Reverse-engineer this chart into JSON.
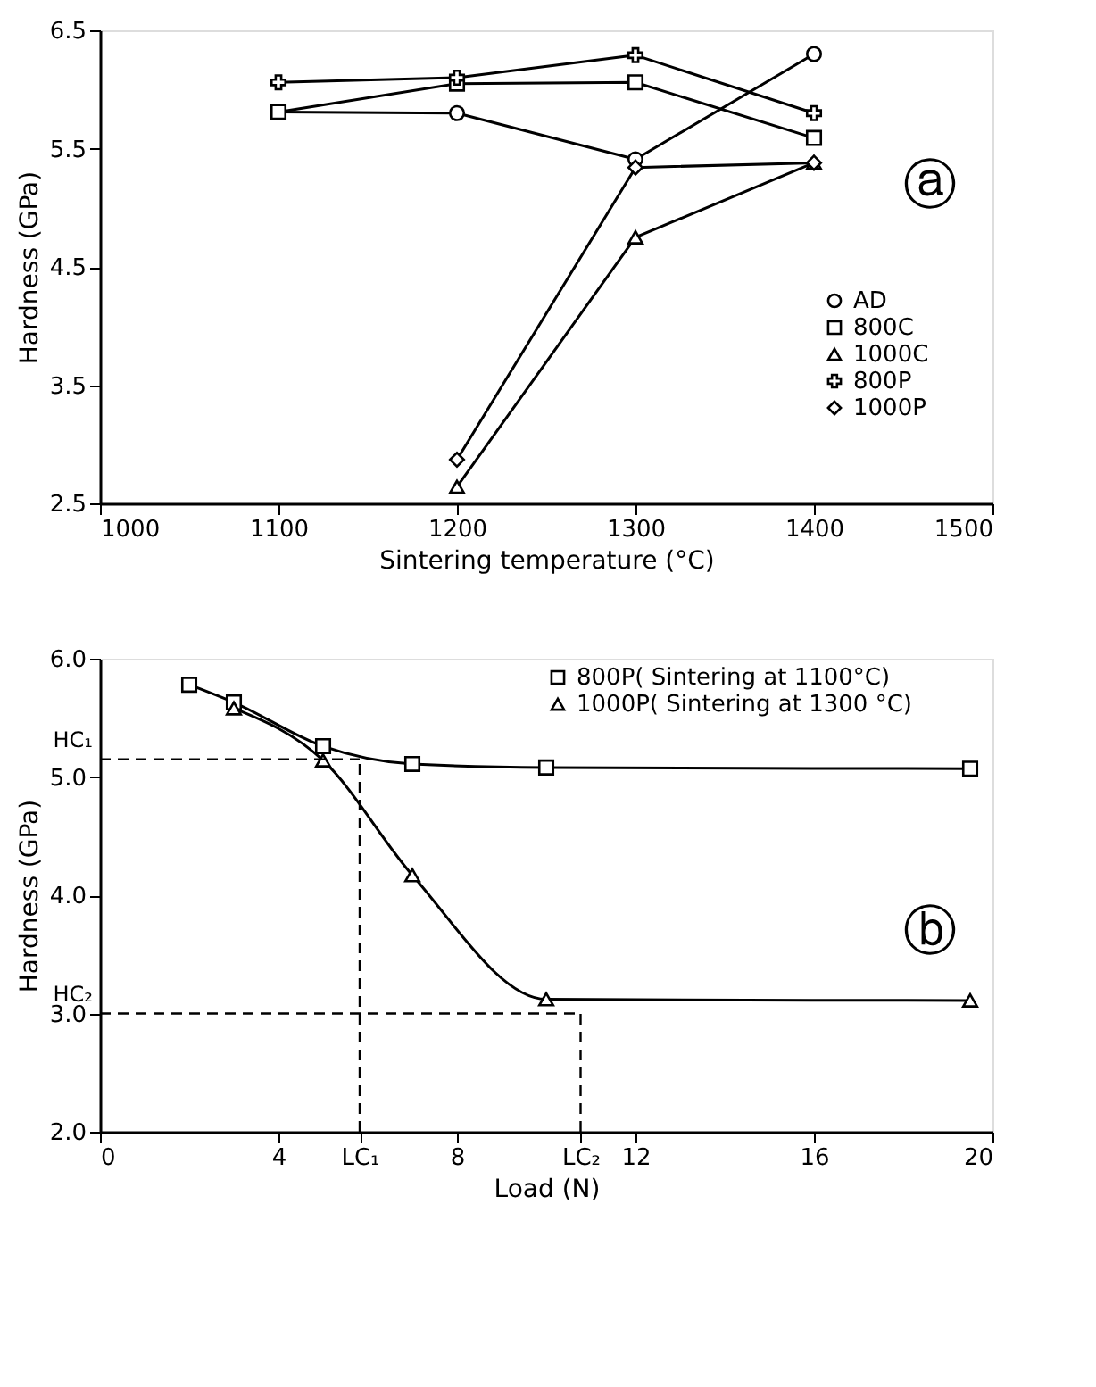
{
  "chart_data": [
    {
      "type": "line",
      "xlabel": "Sintering temperature (°C)",
      "ylabel": "Hardness (GPa)",
      "xlim": [
        1000,
        1500
      ],
      "xticks": [
        1000,
        1100,
        1200,
        1300,
        1400,
        1500
      ],
      "ylim": [
        2.5,
        6.5
      ],
      "yticks": [
        2.5,
        3.5,
        4.5,
        5.5,
        6.5
      ],
      "grid": false,
      "legend": "right",
      "line_style": "solid",
      "annotations": [
        "ⓐ"
      ],
      "series": [
        {
          "name": "AD",
          "color": "#000000",
          "marker": "circle",
          "x": [
            1100,
            1200,
            1300,
            1400
          ],
          "values": [
            5.81,
            5.8,
            5.41,
            6.3
          ]
        },
        {
          "name": "800C",
          "color": "#000000",
          "marker": "square",
          "x": [
            1100,
            1200,
            1300,
            1400
          ],
          "values": [
            5.81,
            6.05,
            6.06,
            5.59
          ]
        },
        {
          "name": "1000C",
          "color": "#000000",
          "marker": "triangle",
          "x": [
            1200,
            1300,
            1400
          ],
          "values": [
            2.64,
            4.75,
            5.38
          ]
        },
        {
          "name": "800P",
          "color": "#000000",
          "marker": "cross",
          "x": [
            1100,
            1200,
            1300,
            1400
          ],
          "values": [
            6.06,
            6.1,
            6.29,
            5.8
          ]
        },
        {
          "name": "1000P",
          "color": "#000000",
          "marker": "diamond",
          "x": [
            1200,
            1300,
            1400
          ],
          "values": [
            2.87,
            5.34,
            5.38
          ]
        }
      ]
    },
    {
      "type": "line",
      "xlabel": "Load (N)",
      "ylabel": "Hardness (GPa)",
      "xlim": [
        0,
        20
      ],
      "xticks": [
        0,
        4,
        {
          "value": 5.82,
          "label": "LC₁"
        },
        8,
        {
          "value": 10.77,
          "label": "LC₂"
        },
        12,
        16,
        20
      ],
      "ylim": [
        2.0,
        6.0
      ],
      "yticks": [
        {
          "value": 2,
          "label": "2.0"
        },
        {
          "value": 3,
          "label": "3.0"
        },
        {
          "value": 4,
          "label": "4.0"
        },
        {
          "value": 5,
          "label": "5.0"
        },
        {
          "value": 6,
          "label": "6.0"
        }
      ],
      "grid": false,
      "legend": "top right",
      "line_style": "solid",
      "annotations": [
        "ⓑ",
        {
          "text": "HC₁",
          "x": 0,
          "y": 5.15
        },
        {
          "text": "HC₂",
          "x": 0,
          "y": 3.0
        }
      ],
      "ref_lines": [
        {
          "axis": "x",
          "value": 5.82,
          "line_style": "dashed"
        },
        {
          "axis": "x",
          "value": 10.77,
          "line_style": "dashed"
        },
        {
          "axis": "y",
          "value": 5.15,
          "line_style": "dashed"
        },
        {
          "axis": "y",
          "value": 3.0,
          "line_style": "dashed"
        }
      ],
      "series": [
        {
          "name": "800P( Sintering at 1100°C)",
          "color": "#000000",
          "marker": "square",
          "x": [
            2,
            3,
            5,
            7,
            10,
            19.5
          ],
          "values": [
            5.78,
            5.63,
            5.26,
            5.11,
            5.08,
            5.07
          ]
        },
        {
          "name": "1000P( Sintering at 1300 °C)",
          "color": "#000000",
          "marker": "triangle",
          "x": [
            3,
            5,
            7,
            10,
            19.5
          ],
          "values": [
            5.58,
            5.14,
            4.17,
            3.12,
            3.11
          ]
        }
      ]
    }
  ]
}
